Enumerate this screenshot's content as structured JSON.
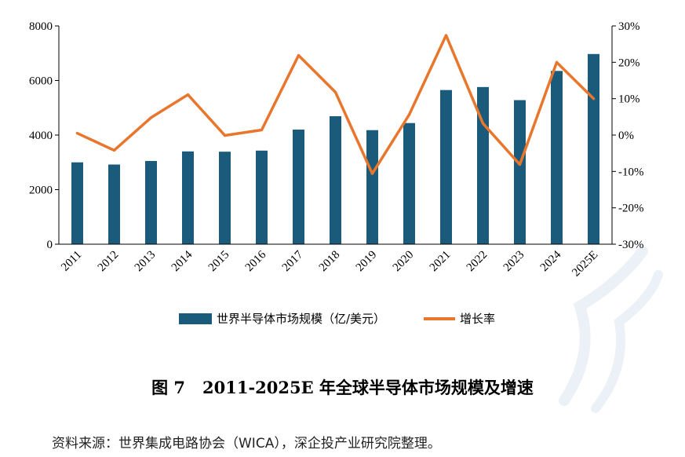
{
  "chart_data": {
    "type": "bar+line",
    "categories": [
      "2011",
      "2012",
      "2013",
      "2014",
      "2015",
      "2016",
      "2017",
      "2018",
      "2019",
      "2020",
      "2021",
      "2022",
      "2023",
      "2024",
      "2025E"
    ],
    "series": [
      {
        "name": "世界半导体市场规模（亿/美元）",
        "type": "bar",
        "axis": "left",
        "color": "#1a5a7a",
        "values": [
          3000,
          2920,
          3050,
          3400,
          3390,
          3430,
          4200,
          4690,
          4180,
          4440,
          5650,
          5760,
          5280,
          6350,
          6970
        ]
      },
      {
        "name": "增长率",
        "type": "line",
        "axis": "right",
        "color": "#e8762c",
        "values": [
          0.5,
          -4.2,
          4.8,
          11.1,
          -0.1,
          1.4,
          21.9,
          11.8,
          -10.6,
          5.6,
          27.4,
          3.2,
          -8.1,
          20.0,
          10.0
        ]
      }
    ],
    "y_left": {
      "min": 0,
      "max": 8000,
      "ticks": [
        "0",
        "2000",
        "4000",
        "6000",
        "8000"
      ]
    },
    "y_right": {
      "min": -30,
      "max": 30,
      "ticks": [
        "-30%",
        "-20%",
        "-10%",
        "0%",
        "10%",
        "20%",
        "30%"
      ]
    },
    "legend_placement": "bottom",
    "grid": false
  },
  "caption": {
    "figure_no": "图 7",
    "title": "2011-2025E 年全球半导体市场规模及增速"
  },
  "source": "资料来源：世界集成电路协会（WICA），深企投产业研究院整理。"
}
